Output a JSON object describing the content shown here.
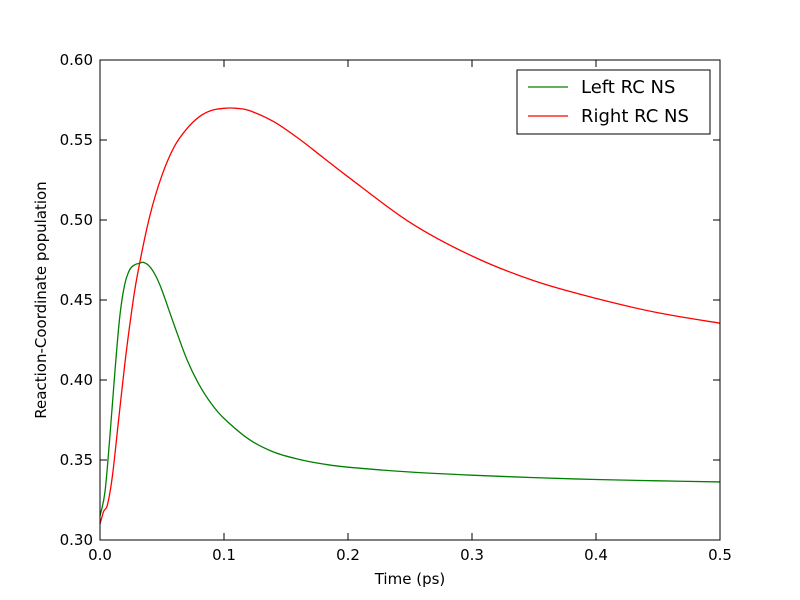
{
  "chart_data": {
    "type": "line",
    "title": "",
    "xlabel": "Time (ps)",
    "ylabel": "Reaction-Coordinate population",
    "xlim": [
      0.0,
      0.5
    ],
    "ylim": [
      0.3,
      0.6
    ],
    "xticks": [
      0.0,
      0.1,
      0.2,
      0.3,
      0.4,
      0.5
    ],
    "xtick_labels": [
      "0.0",
      "0.1",
      "0.2",
      "0.3",
      "0.4",
      "0.5"
    ],
    "yticks": [
      0.3,
      0.35,
      0.4,
      0.45,
      0.5,
      0.55,
      0.6
    ],
    "ytick_labels": [
      "0.30",
      "0.35",
      "0.40",
      "0.45",
      "0.50",
      "0.55",
      "0.60"
    ],
    "grid": false,
    "legend": {
      "position": "top-right",
      "entries": [
        "Left RC NS",
        "Right RC NS"
      ]
    },
    "series": [
      {
        "name": "Left RC NS",
        "color": "#008000",
        "x": [
          0.0,
          0.004,
          0.008,
          0.012,
          0.016,
          0.02,
          0.024,
          0.028,
          0.032,
          0.035,
          0.04,
          0.045,
          0.05,
          0.06,
          0.07,
          0.08,
          0.09,
          0.1,
          0.12,
          0.14,
          0.16,
          0.18,
          0.2,
          0.25,
          0.3,
          0.35,
          0.4,
          0.45,
          0.5
        ],
        "y": [
          0.315,
          0.33,
          0.365,
          0.405,
          0.44,
          0.46,
          0.469,
          0.472,
          0.473,
          0.4735,
          0.471,
          0.465,
          0.456,
          0.434,
          0.413,
          0.397,
          0.385,
          0.376,
          0.363,
          0.355,
          0.3505,
          0.3475,
          0.3455,
          0.3425,
          0.3405,
          0.339,
          0.3378,
          0.337,
          0.3363
        ]
      },
      {
        "name": "Right RC NS",
        "color": "#ff0000",
        "x": [
          0.0,
          0.003,
          0.006,
          0.01,
          0.015,
          0.02,
          0.025,
          0.03,
          0.04,
          0.05,
          0.06,
          0.07,
          0.08,
          0.09,
          0.1,
          0.105,
          0.11,
          0.12,
          0.14,
          0.16,
          0.18,
          0.2,
          0.25,
          0.3,
          0.35,
          0.4,
          0.45,
          0.5
        ],
        "y": [
          0.31,
          0.318,
          0.322,
          0.34,
          0.375,
          0.41,
          0.44,
          0.465,
          0.502,
          0.528,
          0.546,
          0.557,
          0.5645,
          0.5685,
          0.5698,
          0.57,
          0.5698,
          0.5685,
          0.5615,
          0.551,
          0.539,
          0.527,
          0.4985,
          0.4775,
          0.462,
          0.451,
          0.442,
          0.4355
        ]
      }
    ]
  }
}
